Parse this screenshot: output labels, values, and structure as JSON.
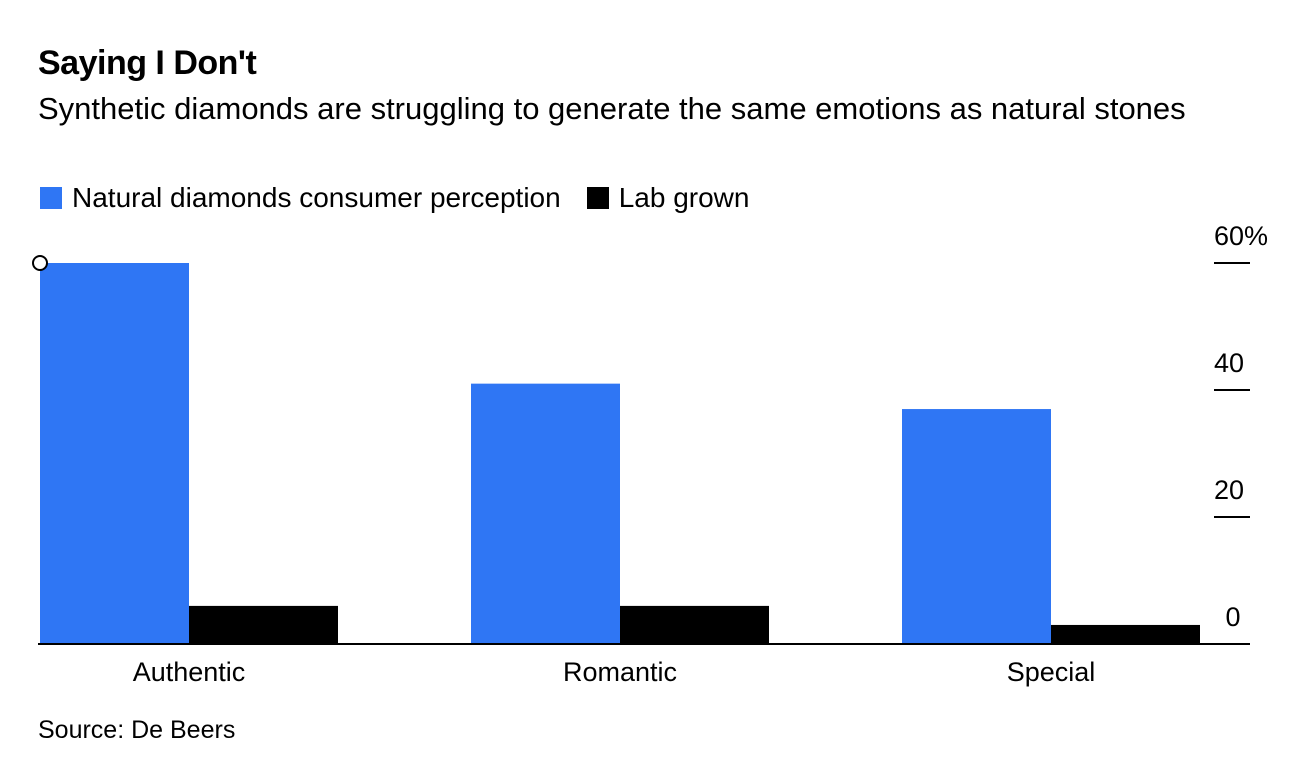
{
  "header": {
    "title": "Saying I Don't",
    "subtitle": "Synthetic diamonds are struggling to generate the same emotions as natural stones"
  },
  "source": "Source: De Beers",
  "chart_data": {
    "type": "bar",
    "categories": [
      "Authentic",
      "Romantic",
      "Special"
    ],
    "series": [
      {
        "name": "Natural diamonds consumer perception",
        "values": [
          60,
          41,
          37
        ],
        "color": "#2f76f4"
      },
      {
        "name": "Lab grown",
        "values": [
          6,
          6,
          3
        ],
        "color": "#000000"
      }
    ],
    "yticks": [
      0,
      20,
      40,
      60
    ],
    "ytick_labels": [
      "0",
      "20",
      "40",
      "60%"
    ],
    "ylim": [
      0,
      60
    ],
    "axis_side": "right",
    "grid": false,
    "legend_position": "top-left"
  }
}
